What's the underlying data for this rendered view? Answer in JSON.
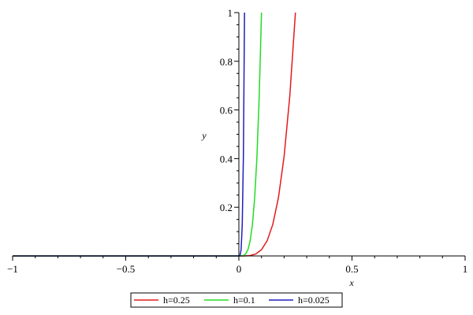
{
  "chart_data": {
    "type": "line",
    "title": "",
    "xlabel": "x",
    "ylabel": "y",
    "xlim": [
      -1,
      1
    ],
    "ylim": [
      0,
      1
    ],
    "x_ticks": [
      -1,
      -0.5,
      0,
      0.5,
      1
    ],
    "x_tick_labels": [
      "−1",
      "−0.5",
      "0",
      "0.5",
      "1"
    ],
    "y_ticks": [
      0.2,
      0.4,
      0.6,
      0.8,
      1
    ],
    "y_tick_labels": [
      "0.2",
      "0.4",
      "0.6",
      "0.8",
      "1"
    ],
    "grid": false,
    "legend_position": "bottom",
    "series": [
      {
        "name": "h=0.25",
        "color": "#e41a1c",
        "points": [
          [
            -1,
            0
          ],
          [
            0,
            0
          ],
          [
            0.025,
            0.0001
          ],
          [
            0.05,
            0.0016
          ],
          [
            0.075,
            0.0081
          ],
          [
            0.1,
            0.0256
          ],
          [
            0.125,
            0.0625
          ],
          [
            0.15,
            0.1296
          ],
          [
            0.175,
            0.2401
          ],
          [
            0.2,
            0.4096
          ],
          [
            0.225,
            0.6561
          ],
          [
            0.25,
            1.0
          ]
        ]
      },
      {
        "name": "h=0.1",
        "color": "#22dd22",
        "points": [
          [
            -1,
            0
          ],
          [
            0,
            0
          ],
          [
            0.01,
            0.0001
          ],
          [
            0.02,
            0.0016
          ],
          [
            0.03,
            0.0081
          ],
          [
            0.04,
            0.0256
          ],
          [
            0.05,
            0.0625
          ],
          [
            0.06,
            0.1296
          ],
          [
            0.07,
            0.2401
          ],
          [
            0.08,
            0.4096
          ],
          [
            0.09,
            0.6561
          ],
          [
            0.1,
            1.0
          ]
        ]
      },
      {
        "name": "h=0.025",
        "color": "#1f1fbf",
        "points": [
          [
            -1,
            0
          ],
          [
            0,
            0
          ],
          [
            0.005,
            0.0016
          ],
          [
            0.01,
            0.0256
          ],
          [
            0.015,
            0.1296
          ],
          [
            0.02,
            0.4096
          ],
          [
            0.025,
            1.0
          ]
        ]
      }
    ]
  }
}
